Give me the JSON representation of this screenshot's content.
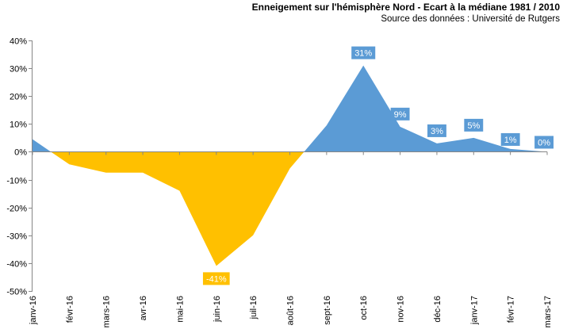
{
  "chart_data": {
    "type": "area",
    "title": "Enneigement sur l'hémisphère Nord - Ecart à la médiane 1981 / 2010",
    "subtitle": "Source des données : Université de Rutgers",
    "xlabel": "",
    "ylabel": "",
    "categories": [
      "janv-16",
      "févr-16",
      "mars-16",
      "avr-16",
      "mai-16",
      "juin-16",
      "juil-16",
      "août-16",
      "sept-16",
      "oct-16",
      "nov-16",
      "déc-16",
      "janv-17",
      "févr-17",
      "mars-17"
    ],
    "values": [
      4.5,
      -4.5,
      -7.5,
      -7.5,
      -14,
      -41,
      -30,
      -6,
      9.5,
      31,
      9,
      3,
      5,
      1,
      0
    ],
    "ylim": [
      -50,
      40
    ],
    "yticks": [
      40,
      30,
      20,
      10,
      0,
      -10,
      -20,
      -30,
      -40,
      -50
    ],
    "ytick_labels": [
      "40%",
      "30%",
      "20%",
      "10%",
      "0%",
      "-10%",
      "-20%",
      "-30%",
      "-40%",
      "-50%"
    ],
    "data_labels": [
      {
        "index": 5,
        "text": "-41%"
      },
      {
        "index": 9,
        "text": "31%"
      },
      {
        "index": 10,
        "text": "9%"
      },
      {
        "index": 11,
        "text": "3%"
      },
      {
        "index": 12,
        "text": "5%"
      },
      {
        "index": 13,
        "text": "1%"
      },
      {
        "index": 14,
        "text": "0%"
      }
    ],
    "colors": {
      "positive": "#5b9bd5",
      "negative": "#ffc000"
    },
    "grid": false,
    "legend": "none"
  }
}
